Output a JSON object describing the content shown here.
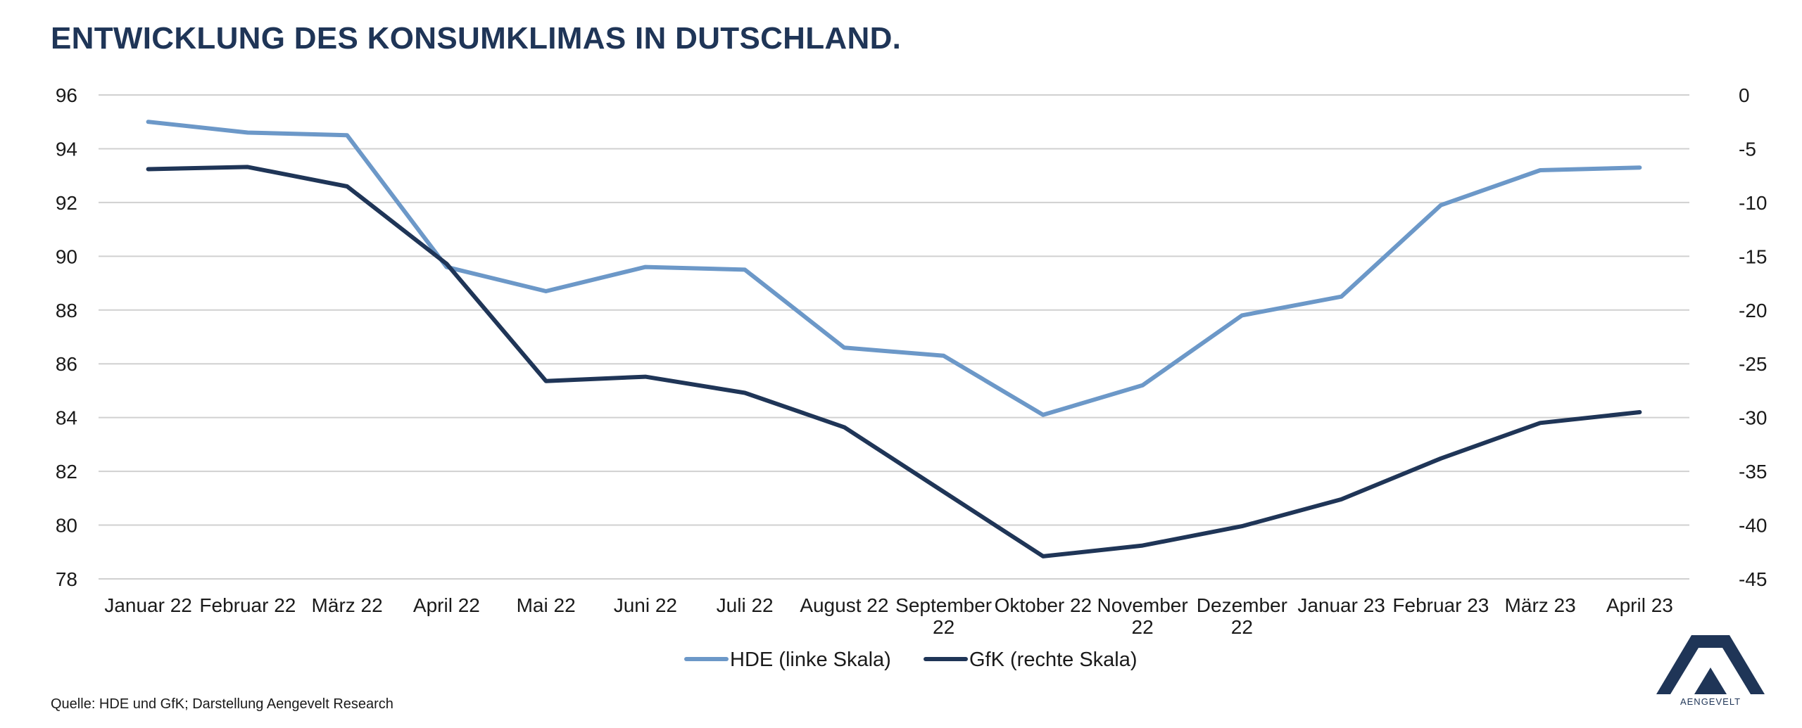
{
  "title": "ENTWICKLUNG DES KONSUMKLIMAS IN DUTSCHLAND.",
  "source": "Quelle: HDE und GfK; Darstellung Aengevelt Research",
  "logo": {
    "text": "AENGEVELT",
    "color": "#1f3557"
  },
  "chart_data": {
    "type": "line",
    "categories": [
      [
        "Januar 22"
      ],
      [
        "Februar 22"
      ],
      [
        "März 22"
      ],
      [
        "April 22"
      ],
      [
        "Mai 22"
      ],
      [
        "Juni 22"
      ],
      [
        "Juli 22"
      ],
      [
        "August 22"
      ],
      [
        "September",
        "22"
      ],
      [
        "Oktober 22"
      ],
      [
        "November",
        "22"
      ],
      [
        "Dezember",
        "22"
      ],
      [
        "Januar 23"
      ],
      [
        "Februar 23"
      ],
      [
        "März 23"
      ],
      [
        "April 23"
      ]
    ],
    "y_left": {
      "min": 78,
      "max": 96,
      "step": 2,
      "ticks": [
        "96",
        "94",
        "92",
        "90",
        "88",
        "86",
        "84",
        "82",
        "80",
        "78"
      ]
    },
    "y_right": {
      "min": -45,
      "max": 0,
      "step": 5,
      "ticks": [
        "0",
        "-5",
        "-10",
        "-15",
        "-20",
        "-25",
        "-30",
        "-35",
        "-40",
        "-45"
      ]
    },
    "grid": true,
    "legend_position": "bottom-center",
    "series": [
      {
        "name": "HDE (linke Skala)",
        "axis": "left",
        "color": "#6c98c8",
        "values": [
          95.0,
          94.6,
          94.5,
          89.6,
          88.7,
          89.6,
          89.5,
          86.6,
          86.3,
          84.1,
          85.2,
          87.8,
          88.5,
          91.9,
          93.2,
          93.3
        ]
      },
      {
        "name": "GfK (rechte Skala)",
        "axis": "right",
        "color": "#1f3557",
        "values": [
          -6.9,
          -6.7,
          -8.5,
          -15.7,
          -26.6,
          -26.2,
          -27.7,
          -30.9,
          -36.9,
          -42.9,
          -41.9,
          -40.1,
          -37.6,
          -33.8,
          -30.5,
          -29.5
        ]
      }
    ]
  }
}
